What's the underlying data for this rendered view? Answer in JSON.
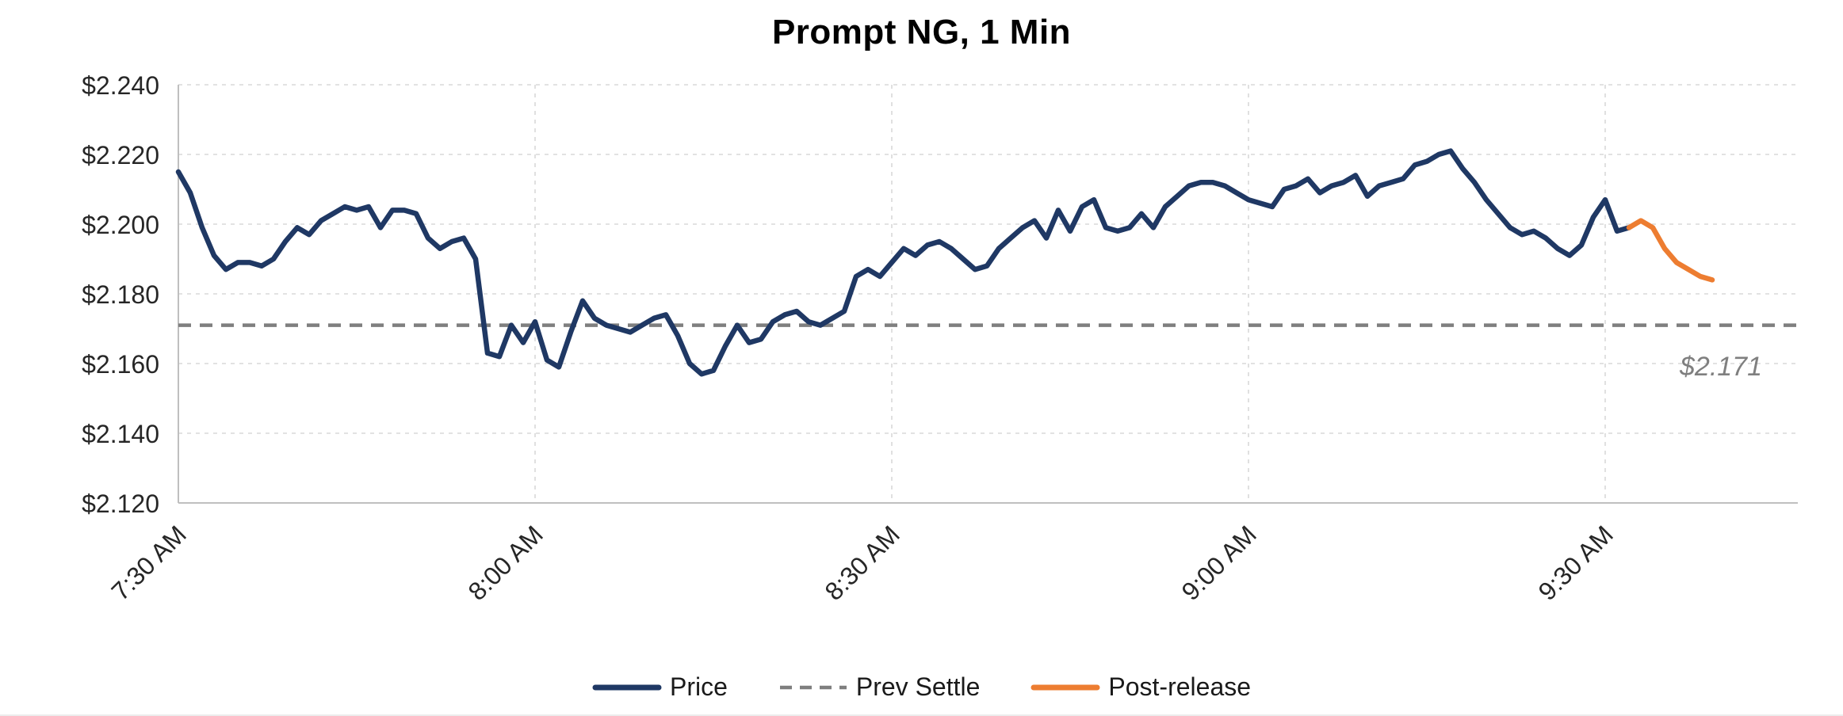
{
  "chart_data": {
    "type": "line",
    "title": "Prompt NG, 1 Min",
    "x_axis": {
      "tick_labels": [
        "7:30 AM",
        "8:00 AM",
        "8:30 AM",
        "9:00 AM",
        "9:30 AM"
      ],
      "tick_minutes": [
        0,
        30,
        60,
        90,
        120
      ],
      "start_time": "7:30 AM",
      "interval": "1 minute",
      "minutes_range": [
        0,
        136
      ]
    },
    "y_axis": {
      "tick_labels": [
        "$2.120",
        "$2.140",
        "$2.160",
        "$2.180",
        "$2.200",
        "$2.220",
        "$2.240"
      ],
      "tick_values": [
        2.12,
        2.14,
        2.16,
        2.18,
        2.2,
        2.22,
        2.24
      ],
      "min": 2.12,
      "max": 2.24
    },
    "grid": true,
    "legend_position": "bottom",
    "series": [
      {
        "name": "Price",
        "type": "line",
        "color": "#1F3864",
        "style": "solid",
        "start_minute": 0,
        "values": [
          2.215,
          2.209,
          2.199,
          2.191,
          2.187,
          2.189,
          2.189,
          2.188,
          2.19,
          2.195,
          2.199,
          2.197,
          2.201,
          2.203,
          2.205,
          2.204,
          2.205,
          2.199,
          2.204,
          2.204,
          2.203,
          2.196,
          2.193,
          2.195,
          2.196,
          2.19,
          2.163,
          2.162,
          2.171,
          2.166,
          2.172,
          2.161,
          2.159,
          2.169,
          2.178,
          2.173,
          2.171,
          2.17,
          2.169,
          2.171,
          2.173,
          2.174,
          2.168,
          2.16,
          2.157,
          2.158,
          2.165,
          2.171,
          2.166,
          2.167,
          2.172,
          2.174,
          2.175,
          2.172,
          2.171,
          2.173,
          2.175,
          2.185,
          2.187,
          2.185,
          2.189,
          2.193,
          2.191,
          2.194,
          2.195,
          2.193,
          2.19,
          2.187,
          2.188,
          2.193,
          2.196,
          2.199,
          2.201,
          2.196,
          2.204,
          2.198,
          2.205,
          2.207,
          2.199,
          2.198,
          2.199,
          2.203,
          2.199,
          2.205,
          2.208,
          2.211,
          2.212,
          2.212,
          2.211,
          2.209,
          2.207,
          2.206,
          2.205,
          2.21,
          2.211,
          2.213,
          2.209,
          2.211,
          2.212,
          2.214,
          2.208,
          2.211,
          2.212,
          2.213,
          2.217,
          2.218,
          2.22,
          2.221,
          2.216,
          2.212,
          2.207,
          2.203,
          2.199,
          2.197,
          2.198,
          2.196,
          2.193,
          2.191,
          2.194,
          2.202,
          2.207,
          2.198,
          2.199
        ]
      },
      {
        "name": "Prev Settle",
        "type": "hline",
        "color": "#7F7F7F",
        "style": "dashed",
        "value": 2.171,
        "label": "$2.171"
      },
      {
        "name": "Post-release",
        "type": "line",
        "color": "#ED7D31",
        "style": "solid",
        "start_minute": 122,
        "values": [
          2.199,
          2.201,
          2.199,
          2.193,
          2.189,
          2.187,
          2.185,
          2.184
        ]
      }
    ]
  }
}
